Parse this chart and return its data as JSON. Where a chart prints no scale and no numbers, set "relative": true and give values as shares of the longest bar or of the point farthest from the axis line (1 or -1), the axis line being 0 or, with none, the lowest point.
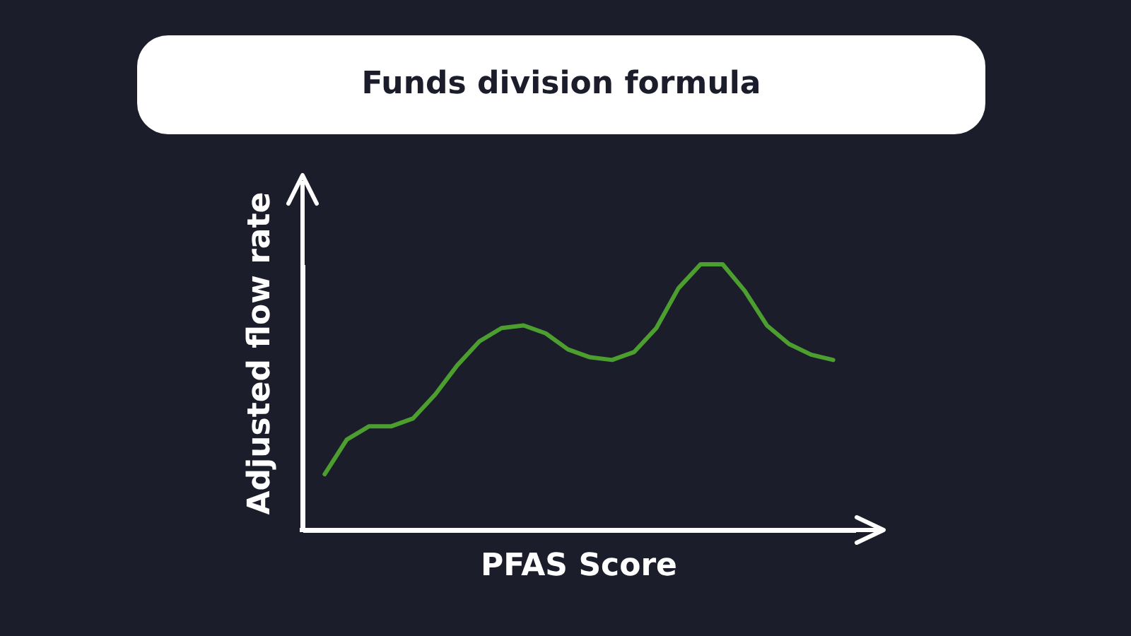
{
  "chart_data": {
    "type": "line",
    "title": "Funds division formula",
    "xlabel": "PFAS Score",
    "ylabel": "Adjusted flow rate",
    "relative": true,
    "categories": [
      null,
      null,
      null,
      null,
      null,
      null,
      null,
      null,
      null,
      null,
      null,
      null,
      null,
      null,
      null,
      null,
      null,
      null,
      null,
      null,
      null,
      null,
      null,
      null
    ],
    "series": [
      {
        "color": "#4c9e2f",
        "values": [
          0.21,
          0.34,
          0.39,
          0.39,
          0.42,
          0.51,
          0.62,
          0.71,
          0.76,
          0.77,
          0.74,
          0.68,
          0.65,
          0.64,
          0.67,
          0.76,
          0.91,
          1,
          1,
          0.9,
          0.77,
          0.7,
          0.66,
          0.64
        ]
      }
    ]
  }
}
